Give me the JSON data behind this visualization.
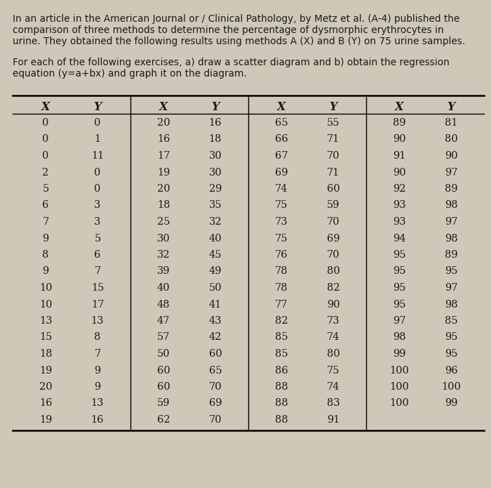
{
  "title_line1": "In an article in the American Journal or / Clinical Pathology, by Metz et al. (A-4) published the",
  "title_line2": "comparison of three methods to determine the percentage of dysmorphic erythrocytes in",
  "title_line3": "urine. They obtained the following results using methods A (X) and B (Y) on 75 urine samples.",
  "subtitle_line1": "For each of the following exercises, a) draw a scatter diagram and b) obtain the regression",
  "subtitle_line2": "equation (y=a+bx) and graph it on the diagram.",
  "columns": [
    "X",
    "Y",
    "X",
    "Y",
    "X",
    "Y",
    "X",
    "Y"
  ],
  "col1_X": [
    0,
    0,
    0,
    2,
    5,
    6,
    7,
    9,
    8,
    9,
    10,
    10,
    13,
    15,
    18,
    19,
    20,
    16,
    19
  ],
  "col1_Y": [
    0,
    1,
    11,
    0,
    0,
    3,
    3,
    5,
    6,
    7,
    15,
    17,
    13,
    8,
    7,
    9,
    9,
    13,
    16
  ],
  "col2_X": [
    20,
    16,
    17,
    19,
    20,
    18,
    25,
    30,
    32,
    39,
    40,
    48,
    47,
    57,
    50,
    60,
    60,
    59,
    62
  ],
  "col2_Y": [
    16,
    18,
    30,
    30,
    29,
    35,
    32,
    40,
    45,
    49,
    50,
    41,
    43,
    42,
    60,
    65,
    70,
    69,
    70
  ],
  "col3_X": [
    65,
    66,
    67,
    69,
    74,
    75,
    73,
    75,
    76,
    78,
    78,
    77,
    82,
    85,
    85,
    86,
    88,
    88,
    88
  ],
  "col3_Y": [
    55,
    71,
    70,
    71,
    60,
    59,
    70,
    69,
    70,
    80,
    82,
    90,
    73,
    74,
    80,
    75,
    74,
    83,
    91
  ],
  "col4_X": [
    89,
    90,
    91,
    90,
    92,
    93,
    93,
    94,
    95,
    95,
    95,
    95,
    97,
    98,
    99,
    100,
    100,
    100
  ],
  "col4_Y": [
    81,
    80,
    90,
    97,
    89,
    98,
    97,
    98,
    89,
    95,
    97,
    98,
    85,
    95,
    95,
    96,
    100,
    99
  ],
  "bg_color": "#cfc8b8",
  "text_color": "#1a1a1a",
  "title_fontsize": 9.8,
  "subtitle_fontsize": 9.8,
  "table_fontsize": 10.5,
  "header_fontsize": 11.5
}
